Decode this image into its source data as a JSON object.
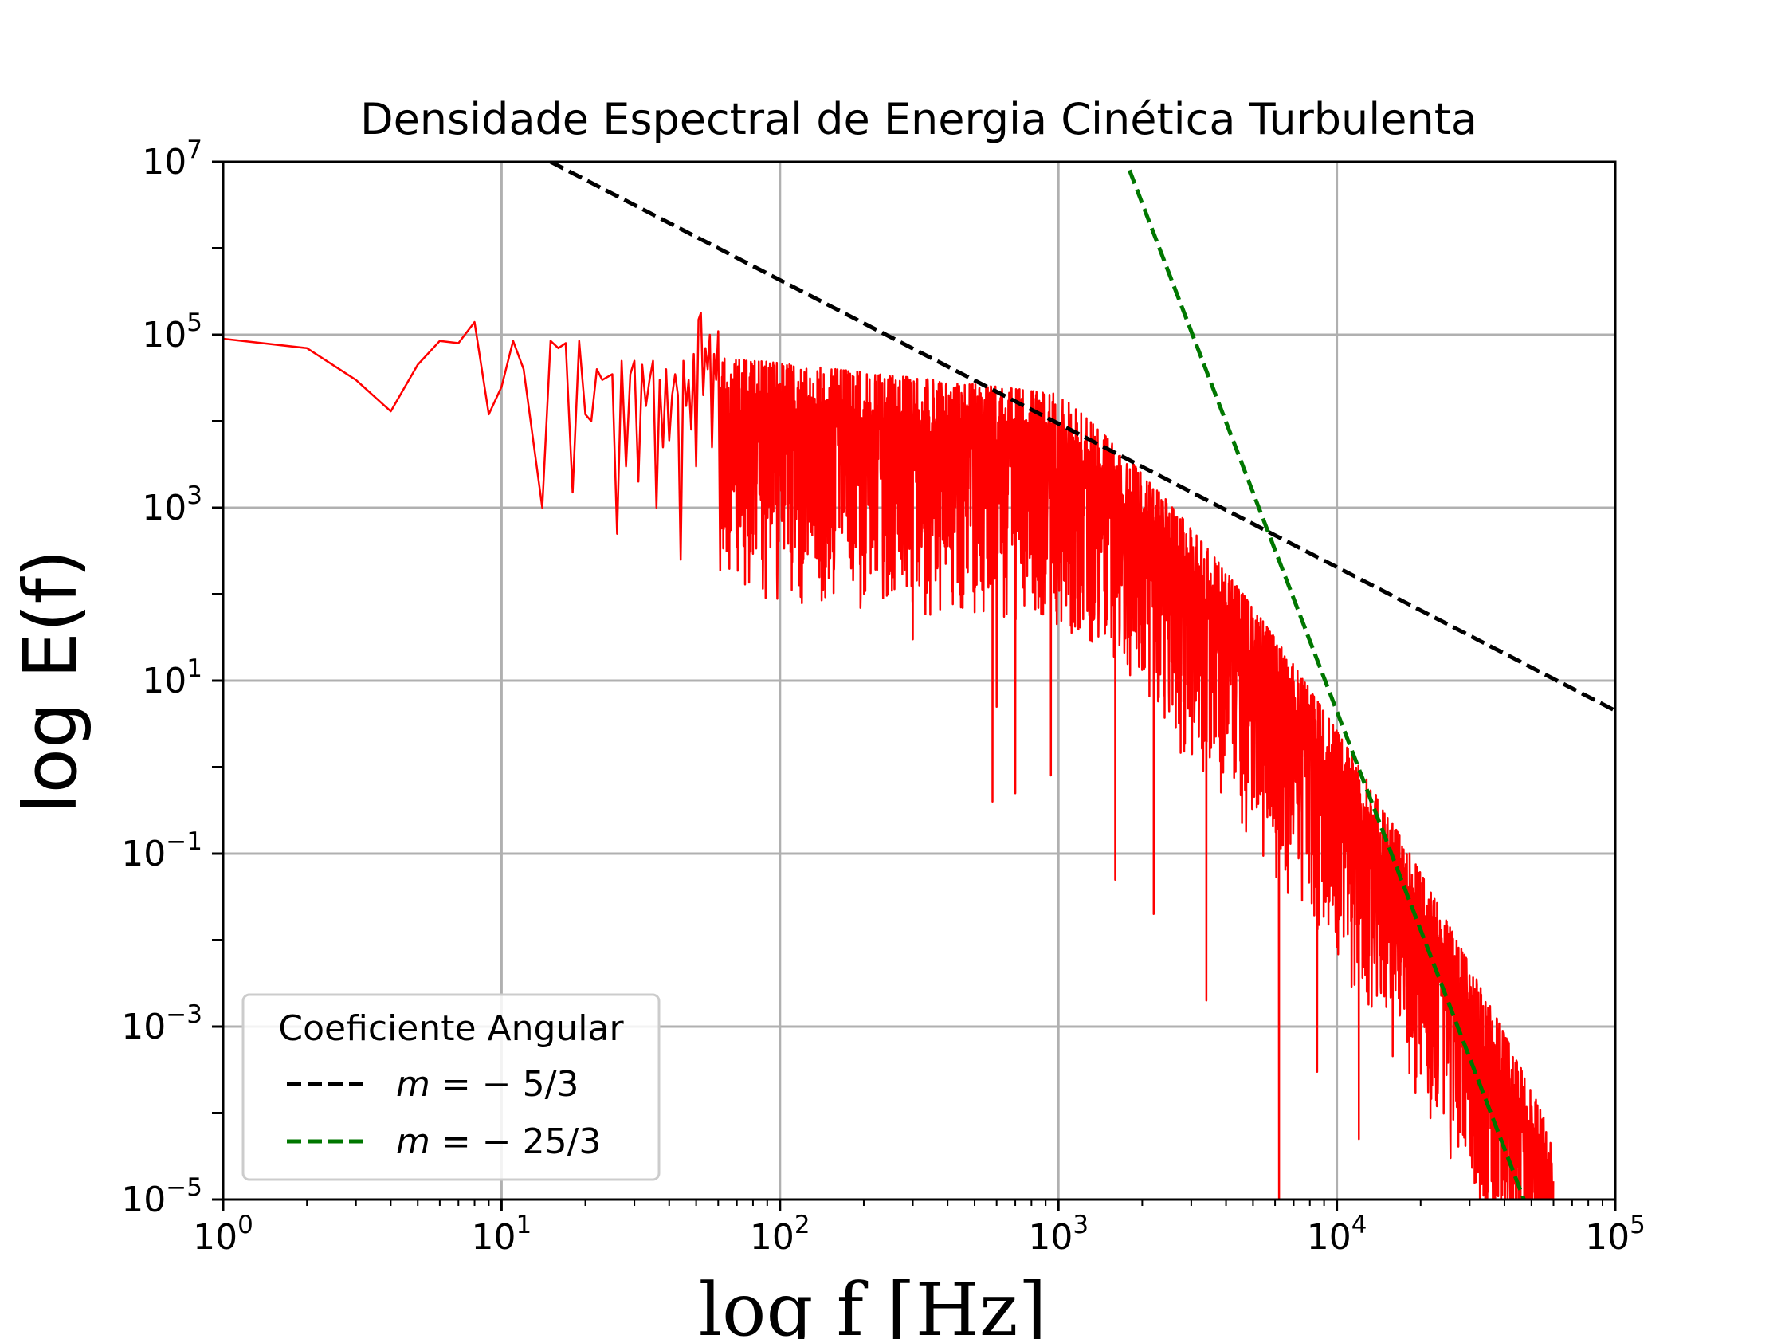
{
  "chart_data": {
    "type": "line",
    "title": "Densidade Espectral de Energia Cinética Turbulenta",
    "xlabel": "log f [Hz]",
    "ylabel": "log E(f)",
    "xscale": "log",
    "yscale": "log",
    "xlim": [
      1,
      100000
    ],
    "ylim": [
      1e-05,
      10000000
    ],
    "grid": true,
    "x_ticks": [
      {
        "base": "10",
        "exp": "0"
      },
      {
        "base": "10",
        "exp": "1"
      },
      {
        "base": "10",
        "exp": "2"
      },
      {
        "base": "10",
        "exp": "3"
      },
      {
        "base": "10",
        "exp": "4"
      },
      {
        "base": "10",
        "exp": "5"
      }
    ],
    "y_ticks": [
      {
        "base": "10",
        "exp": "7"
      },
      {
        "base": "10",
        "exp": "5"
      },
      {
        "base": "10",
        "exp": "3"
      },
      {
        "base": "10",
        "exp": "1"
      },
      {
        "base": "10",
        "exp": "−1"
      },
      {
        "base": "10",
        "exp": "−3"
      },
      {
        "base": "10",
        "exp": "−5"
      }
    ],
    "legend": {
      "title": "Coeficiente Angular",
      "placement": "lower-left",
      "entries": [
        {
          "label_var": "m",
          "label_rest": " = − 5/3",
          "color": "#000000",
          "style": "dashed"
        },
        {
          "label_var": "m",
          "label_rest": " = − 25/3",
          "color": "#007700",
          "style": "dashed"
        }
      ]
    },
    "series": [
      {
        "kind": "spectrum",
        "color": "#ff0000",
        "style": "solid",
        "low_f_points": [
          [
            1,
            90000
          ],
          [
            2,
            70000
          ],
          [
            3,
            30000
          ],
          [
            4,
            13000
          ],
          [
            5,
            45000
          ],
          [
            6,
            85000
          ],
          [
            7,
            80000
          ],
          [
            8,
            140000
          ],
          [
            9,
            12000
          ],
          [
            10,
            25000
          ],
          [
            11,
            85000
          ],
          [
            12,
            40000
          ],
          [
            14,
            1000
          ],
          [
            15,
            85000
          ],
          [
            16,
            70000
          ],
          [
            17,
            80000
          ],
          [
            18,
            1500
          ],
          [
            19,
            85000
          ],
          [
            20,
            12000
          ],
          [
            21,
            10000
          ],
          [
            22,
            40000
          ],
          [
            23,
            30000
          ],
          [
            25,
            35000
          ],
          [
            26,
            500
          ],
          [
            27,
            50000
          ],
          [
            28,
            3000
          ],
          [
            29,
            35000
          ],
          [
            30,
            50000
          ],
          [
            31,
            2000
          ],
          [
            32,
            45000
          ],
          [
            33,
            15000
          ],
          [
            34,
            30000
          ],
          [
            35,
            50000
          ],
          [
            36,
            1000
          ],
          [
            37,
            30000
          ],
          [
            38,
            5000
          ],
          [
            39,
            40000
          ],
          [
            40,
            6000
          ],
          [
            41,
            20000
          ],
          [
            42,
            35000
          ],
          [
            43,
            20000
          ],
          [
            44,
            250
          ],
          [
            45,
            50000
          ],
          [
            46,
            15000
          ],
          [
            47,
            30000
          ],
          [
            48,
            8000
          ],
          [
            49,
            60000
          ],
          [
            50,
            3000
          ],
          [
            51,
            150000
          ],
          [
            52,
            180000
          ],
          [
            53,
            20000
          ],
          [
            54,
            70000
          ],
          [
            55,
            40000
          ],
          [
            56,
            100000
          ],
          [
            57,
            5000
          ],
          [
            58,
            60000
          ],
          [
            59,
            30000
          ],
          [
            60,
            110000
          ]
        ],
        "spikes": [
          [
            300,
            30
          ],
          [
            580,
            0.4
          ],
          [
            600,
            5
          ],
          [
            700,
            0.5
          ],
          [
            940,
            0.8
          ],
          [
            1600,
            0.05
          ],
          [
            2200,
            0.02
          ],
          [
            3400,
            0.002
          ],
          [
            6200,
            1e-05
          ],
          [
            8500,
            0.0003
          ],
          [
            12000,
            5e-05
          ]
        ]
      },
      {
        "name": "m = − 5/3",
        "kind": "power_law",
        "slope": -1.6667,
        "color": "#000000",
        "style": "dashed",
        "x": [
          15,
          100000
        ],
        "y": [
          10000000,
          4.5
        ]
      },
      {
        "name": "m = − 25/3",
        "kind": "power_law",
        "slope": -8.3333,
        "color": "#007700",
        "style": "dashed",
        "x": [
          1800,
          47000
        ],
        "y": [
          8000000,
          1e-05
        ]
      }
    ]
  }
}
